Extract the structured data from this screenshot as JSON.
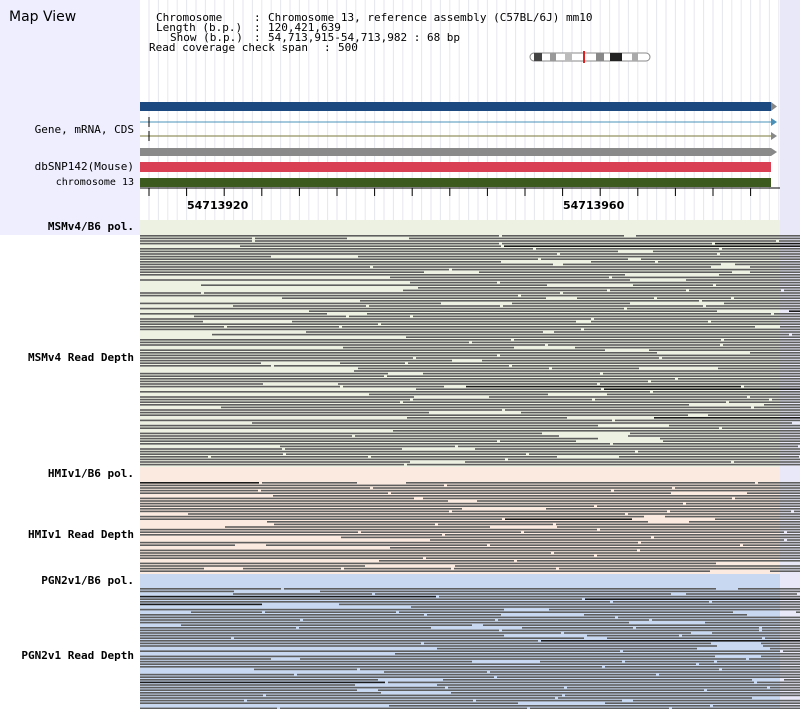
{
  "view_title": "Map View",
  "info": {
    "chromosome_label": "Chromosome",
    "chromosome_value": "Chromosome 13, reference assembly (C57BL/6J) mm10",
    "length_label": "Length (b.p.)",
    "length_value": "120,421,639",
    "show_label": "Show (b.p.)",
    "show_value": "54,713,915-54,713,982 : 68 bp",
    "coverage_label": "Read coverage check span",
    "coverage_value": "500"
  },
  "tracks": {
    "gene": "Gene, mRNA, CDS",
    "dbsnp": "dbSNP142(Mouse)",
    "chromosome": "chromosome 13"
  },
  "ruler": {
    "tick_left": "54713920",
    "tick_right": "54713960"
  },
  "samples": [
    {
      "pol_label": "MSMv4/B6 pol.",
      "depth_label": "MSMv4 Read Depth",
      "bg_color": "#ecf1e2"
    },
    {
      "pol_label": "HMIv1/B6 pol.",
      "depth_label": "HMIv1 Read Depth",
      "bg_color": "#fbeadf"
    },
    {
      "pol_label": "PGN2v1/B6 pol.",
      "depth_label": "PGN2v1 Read Depth",
      "bg_color": "#c9d8f1"
    }
  ],
  "colors": {
    "gene_bar": "#1c4a80",
    "snp_bar": "#d94054",
    "chromosome_bar": "#3d5a1e",
    "read": "#5e5e5e",
    "read_dark": "#1a1a1a",
    "left_panel": "#eeeeff",
    "chromosome_highlight": "#e02020"
  }
}
